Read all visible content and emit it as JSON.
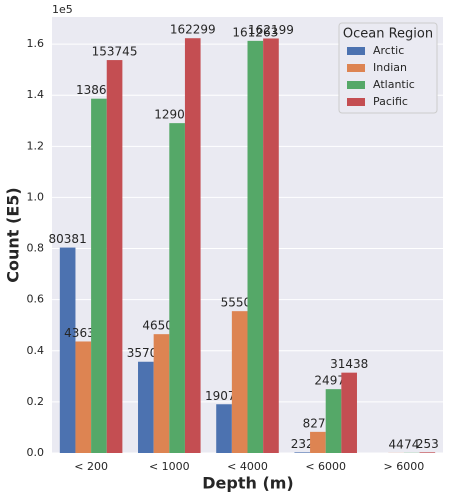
{
  "chart_data": {
    "type": "bar",
    "y_offset_label": "1e5",
    "xlabel": "Depth (m)",
    "ylabel": "Count (E5)",
    "categories": [
      "< 200",
      "< 1000",
      "< 4000",
      "< 6000",
      "> 6000"
    ],
    "series": [
      {
        "name": "Arctic",
        "color": "#4c72b0",
        "values": [
          80381,
          35705,
          19071,
          232,
          null
        ]
      },
      {
        "name": "Indian",
        "color": "#dd8452",
        "values": [
          43637,
          46500,
          55500,
          8272,
          44
        ]
      },
      {
        "name": "Atlantic",
        "color": "#55a868",
        "values": [
          138636,
          129071,
          161263,
          24979,
          74
        ]
      },
      {
        "name": "Pacific",
        "color": "#c44e52",
        "values": [
          153745,
          162299,
          162199,
          31438,
          253
        ]
      }
    ],
    "legend_title": "Ocean Region",
    "legend": "upper right",
    "ylim": [
      0,
      170600
    ],
    "yticks": [
      {
        "value": 0,
        "label": "0.0"
      },
      {
        "value": 20000,
        "label": "0.2"
      },
      {
        "value": 40000,
        "label": "0.4"
      },
      {
        "value": 60000,
        "label": "0.6"
      },
      {
        "value": 80000,
        "label": "0.8"
      },
      {
        "value": 100000,
        "label": "1.0"
      },
      {
        "value": 120000,
        "label": "1.2"
      },
      {
        "value": 140000,
        "label": "1.4"
      },
      {
        "value": 160000,
        "label": "1.6"
      }
    ],
    "grid": true
  }
}
